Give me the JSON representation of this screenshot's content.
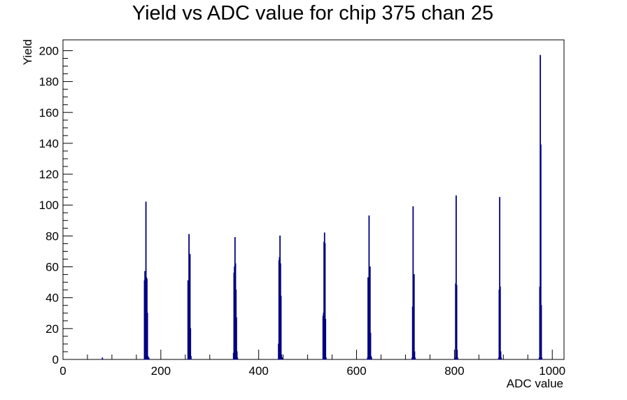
{
  "chart_data": {
    "type": "bar",
    "title": "Yield vs ADC value for chip 375 chan 25",
    "xlabel": "ADC value",
    "ylabel": "Yield",
    "xlim": [
      0,
      1024
    ],
    "ylim": [
      0,
      207
    ],
    "xticks": [
      "0",
      "200",
      "400",
      "600",
      "800",
      "1000"
    ],
    "yticks": [
      "0",
      "20",
      "40",
      "60",
      "80",
      "100",
      "120",
      "140",
      "160",
      "180",
      "200"
    ],
    "grid": false,
    "line_color": "#000080",
    "bins": [
      [
        80,
        1
      ],
      [
        166,
        51
      ],
      [
        167,
        57
      ],
      [
        168,
        57
      ],
      [
        169,
        102
      ],
      [
        170,
        53
      ],
      [
        171,
        52
      ],
      [
        172,
        30
      ],
      [
        173,
        2
      ],
      [
        175,
        1
      ],
      [
        255,
        51
      ],
      [
        256,
        51
      ],
      [
        257,
        81
      ],
      [
        258,
        68
      ],
      [
        259,
        68
      ],
      [
        260,
        20
      ],
      [
        261,
        2
      ],
      [
        348,
        4
      ],
      [
        349,
        56
      ],
      [
        350,
        60
      ],
      [
        351,
        79
      ],
      [
        352,
        62
      ],
      [
        353,
        45
      ],
      [
        354,
        27
      ],
      [
        355,
        5
      ],
      [
        356,
        1
      ],
      [
        440,
        10
      ],
      [
        441,
        64
      ],
      [
        442,
        66
      ],
      [
        443,
        80
      ],
      [
        444,
        62
      ],
      [
        445,
        41
      ],
      [
        446,
        3
      ],
      [
        447,
        1
      ],
      [
        448,
        1
      ],
      [
        531,
        28
      ],
      [
        532,
        30
      ],
      [
        533,
        76
      ],
      [
        534,
        82
      ],
      [
        535,
        75
      ],
      [
        536,
        26
      ],
      [
        537,
        1
      ],
      [
        622,
        1
      ],
      [
        623,
        53
      ],
      [
        624,
        52
      ],
      [
        625,
        93
      ],
      [
        626,
        60
      ],
      [
        627,
        60
      ],
      [
        628,
        17
      ],
      [
        629,
        2
      ],
      [
        630,
        1
      ],
      [
        713,
        1
      ],
      [
        714,
        34
      ],
      [
        715,
        99
      ],
      [
        716,
        55
      ],
      [
        717,
        55
      ],
      [
        718,
        5
      ],
      [
        719,
        1
      ],
      [
        801,
        1
      ],
      [
        802,
        49
      ],
      [
        803,
        106
      ],
      [
        804,
        48
      ],
      [
        805,
        6
      ],
      [
        806,
        1
      ],
      [
        890,
        1
      ],
      [
        891,
        45
      ],
      [
        892,
        105
      ],
      [
        893,
        47
      ],
      [
        894,
        5
      ],
      [
        895,
        1
      ],
      [
        973,
        1
      ],
      [
        974,
        47
      ],
      [
        975,
        197
      ],
      [
        976,
        139
      ],
      [
        977,
        35
      ],
      [
        978,
        1
      ]
    ]
  }
}
